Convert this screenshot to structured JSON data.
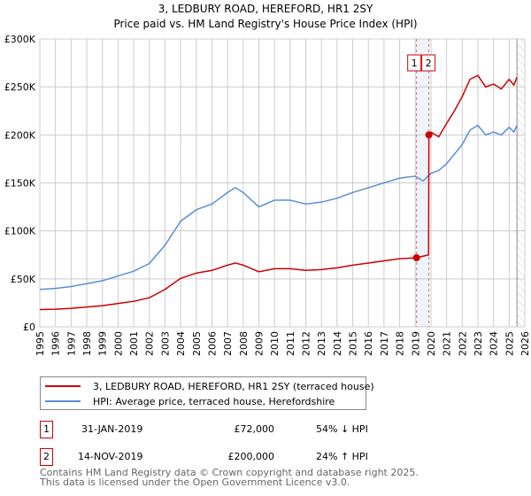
{
  "chart_data": {
    "type": "line",
    "title": "3, LEDBURY ROAD, HEREFORD, HR1 2SY",
    "subtitle": "Price paid vs. HM Land Registry's House Price Index (HPI)",
    "xlim": [
      1995,
      2026
    ],
    "ylim": [
      0,
      300000
    ],
    "x_ticks": [
      "1995",
      "1996",
      "1997",
      "1998",
      "1999",
      "2000",
      "2001",
      "2002",
      "2003",
      "2004",
      "2005",
      "2006",
      "2007",
      "2008",
      "2009",
      "2010",
      "2011",
      "2012",
      "2013",
      "2014",
      "2015",
      "2016",
      "2017",
      "2018",
      "2019",
      "2020",
      "2021",
      "2022",
      "2023",
      "2024",
      "2025",
      "2026"
    ],
    "y_ticks": [
      {
        "v": 0,
        "l": "£0"
      },
      {
        "v": 50000,
        "l": "£50K"
      },
      {
        "v": 100000,
        "l": "£100K"
      },
      {
        "v": 150000,
        "l": "£150K"
      },
      {
        "v": 200000,
        "l": "£200K"
      },
      {
        "v": 250000,
        "l": "£250K"
      },
      {
        "v": 300000,
        "l": "£300K"
      }
    ],
    "grid": true,
    "series": [
      {
        "name": "3, LEDBURY ROAD, HEREFORD, HR1 2SY (terraced house)",
        "color": "#cc0000",
        "x": [
          1995,
          1996,
          1997,
          1998,
          1999,
          2000,
          2001,
          2002,
          2003,
          2004,
          2005,
          2006,
          2007,
          2007.5,
          2008,
          2009,
          2010,
          2011,
          2012,
          2013,
          2014,
          2015,
          2016,
          2017,
          2018,
          2019.08,
          2019.85,
          2019.87,
          2020,
          2020.5,
          2021,
          2021.5,
          2022,
          2022.5,
          2023,
          2023.5,
          2024,
          2024.5,
          2025,
          2025.3,
          2025.5
        ],
        "y": [
          18000,
          18400,
          19300,
          20700,
          22000,
          24300,
          26600,
          30300,
          39000,
          50500,
          56000,
          58800,
          64300,
          66500,
          64300,
          57400,
          60600,
          60600,
          58800,
          59700,
          61500,
          64300,
          66500,
          68800,
          71000,
          72000,
          75000,
          200000,
          203000,
          198000,
          212000,
          225000,
          240000,
          258000,
          262000,
          250000,
          253000,
          248000,
          258000,
          252000,
          260000
        ]
      },
      {
        "name": "HPI: Average price, terraced house, Herefordshire",
        "color": "#5b8fd4",
        "x": [
          1995,
          1996,
          1997,
          1998,
          1999,
          2000,
          2001,
          2002,
          2003,
          2004,
          2005,
          2006,
          2007,
          2007.5,
          2008,
          2009,
          2010,
          2011,
          2012,
          2013,
          2014,
          2015,
          2016,
          2017,
          2018,
          2019,
          2019.5,
          2020,
          2020.5,
          2021,
          2021.5,
          2022,
          2022.5,
          2023,
          2023.5,
          2024,
          2024.5,
          2025,
          2025.3,
          2025.5
        ],
        "y": [
          39000,
          40000,
          42000,
          45000,
          48000,
          53000,
          58000,
          66000,
          85000,
          110000,
          122000,
          128000,
          140000,
          145000,
          140000,
          125000,
          132000,
          132000,
          128000,
          130000,
          134000,
          140000,
          145000,
          150000,
          155000,
          157000,
          152000,
          160000,
          163000,
          170000,
          180000,
          190000,
          205000,
          210000,
          200000,
          203000,
          200000,
          208000,
          203000,
          210000
        ]
      }
    ],
    "transactions": [
      {
        "id": "1",
        "x": 2019.08,
        "y": 72000,
        "date": "31-JAN-2019",
        "price": "£72,000",
        "hpi": "54% ↓ HPI"
      },
      {
        "id": "2",
        "x": 2019.87,
        "y": 200000,
        "date": "14-NOV-2019",
        "price": "£200,000",
        "hpi": "24% ↑ HPI"
      }
    ],
    "future_from": 2025.5,
    "legend_position": "bottom"
  },
  "footer": {
    "line1": "Contains HM Land Registry data © Crown copyright and database right 2025.",
    "line2": "This data is licensed under the Open Government Licence v3.0."
  }
}
